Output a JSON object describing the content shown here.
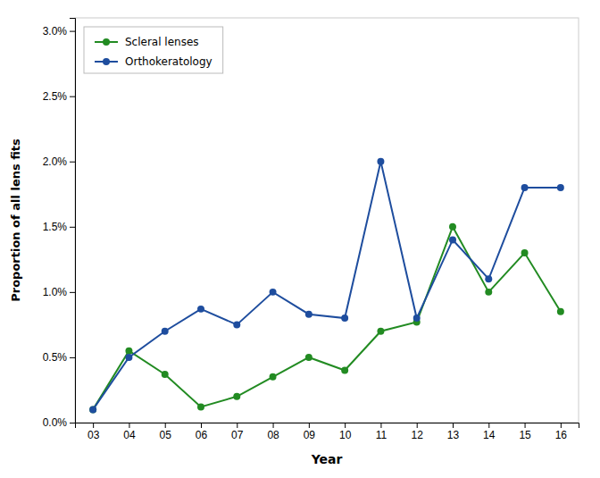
{
  "chart_data": {
    "type": "line",
    "x": [
      3,
      4,
      5,
      6,
      7,
      8,
      9,
      10,
      11,
      12,
      13,
      14,
      15,
      16
    ],
    "series": [
      {
        "name": "Scleral lenses",
        "color": "#228B22",
        "marker": "circle",
        "line_style": "solid",
        "values": [
          0.001,
          0.0055,
          0.0037,
          0.0012,
          0.002,
          0.0035,
          0.005,
          0.004,
          0.007,
          0.0077,
          0.015,
          0.01,
          0.013,
          0.0085
        ]
      },
      {
        "name": "Orthokeratology",
        "color": "#1E4D9E",
        "marker": "circle",
        "line_style": "solid",
        "values": [
          0.001,
          0.005,
          0.007,
          0.0087,
          0.0075,
          0.01,
          0.0083,
          0.008,
          0.02,
          0.008,
          0.014,
          0.011,
          0.018,
          0.018
        ]
      }
    ],
    "x_label": "Year",
    "y_label": "Proportion of all lens fits",
    "xlim": [
      2.5,
      16.5
    ],
    "xticks": [
      {
        "value": 3,
        "label": "03"
      },
      {
        "value": 4,
        "label": "04"
      },
      {
        "value": 5,
        "label": "05"
      },
      {
        "value": 6,
        "label": "06"
      },
      {
        "value": 7,
        "label": "07"
      },
      {
        "value": 8,
        "label": "08"
      },
      {
        "value": 9,
        "label": "09"
      },
      10,
      11,
      12,
      13,
      14,
      15,
      16
    ],
    "ylim": [
      0.0,
      0.031
    ],
    "yticks": [
      {
        "value": 0.0,
        "label": "0.0%"
      },
      {
        "value": 0.005,
        "label": "0.5%"
      },
      {
        "value": 0.01,
        "label": "1.0%"
      },
      {
        "value": 0.015,
        "label": "1.5%"
      },
      {
        "value": 0.02,
        "label": "2.0%"
      },
      {
        "value": 0.025,
        "label": "2.5%"
      },
      {
        "value": 0.03,
        "label": "3.0%"
      }
    ],
    "grid": false,
    "legend": "upper-left"
  }
}
